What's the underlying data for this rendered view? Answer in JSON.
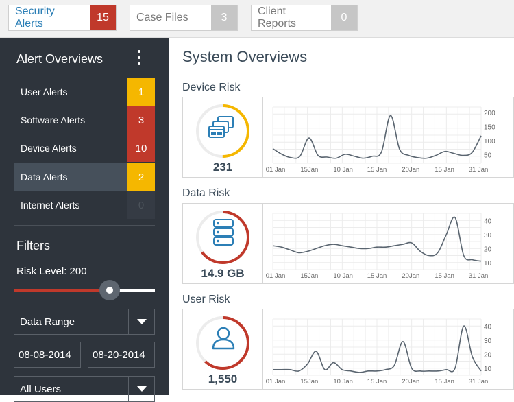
{
  "tabs": [
    {
      "label": "Security Alerts",
      "count": "15",
      "count_color": "#c0392b",
      "active": true
    },
    {
      "label": "Case Files",
      "count": "3",
      "count_color": "#c6c6c6",
      "active": false
    },
    {
      "label": "Client Reports",
      "count": "0",
      "count_color": "#c6c6c6",
      "active": false
    }
  ],
  "sidebar": {
    "title": "Alert Overviews",
    "menu_icon": "vertical-ellipsis-icon",
    "alerts": [
      {
        "label": "User Alerts",
        "count": "1",
        "color": "#f5b700"
      },
      {
        "label": "Software Alerts",
        "count": "3",
        "color": "#c0392b"
      },
      {
        "label": "Device Alerts",
        "count": "10",
        "color": "#c0392b"
      },
      {
        "label": "Data Alerts",
        "count": "2",
        "color": "#f5b700"
      },
      {
        "label": "Internet Alerts",
        "count": "0",
        "color": "#353b44"
      }
    ],
    "selected_alert": "Data Alerts",
    "filters": {
      "title": "Filters",
      "risk_label": "Risk Level: 200",
      "risk_level_fraction": 0.68,
      "data_range_label": "Data Range",
      "date_from": "08-08-2014",
      "date_to": "08-20-2014",
      "users_label": "All Users"
    }
  },
  "main": {
    "title": "System Overviews",
    "sections": [
      {
        "title": "Device Risk",
        "value": "231",
        "icon": "windows-icon",
        "ring_color": "#f5b700",
        "ring_fraction": 0.5,
        "chart_data": {
          "type": "line",
          "x_labels": [
            "01 Jan",
            "15Jan",
            "10 Jan",
            "15 Jan",
            "20Jan",
            "15 Jan",
            "31 Jan"
          ],
          "y_ticks": [
            "200",
            "150",
            "100",
            "50"
          ],
          "ylim": [
            20,
            220
          ],
          "values": [
            72,
            52,
            40,
            45,
            110,
            48,
            42,
            38,
            52,
            45,
            38,
            45,
            60,
            190,
            70,
            48,
            40,
            38,
            48,
            62,
            55,
            48,
            58,
            118
          ],
          "line_color": "#5a6570",
          "grid": true
        }
      },
      {
        "title": "Data Risk",
        "value": "14.9 GB",
        "icon": "database-icon",
        "ring_color": "#c0392b",
        "ring_fraction": 0.65,
        "chart_data": {
          "type": "line",
          "x_labels": [
            "01 Jan",
            "15Jan",
            "10 Jan",
            "15 Jan",
            "20Jan",
            "15 Jan",
            "31 Jan"
          ],
          "y_ticks": [
            "40",
            "30",
            "20",
            "10"
          ],
          "ylim": [
            5,
            45
          ],
          "values": [
            22,
            21,
            19,
            17,
            18,
            20,
            22,
            23,
            22,
            21,
            20,
            20,
            21,
            21,
            22,
            23,
            24,
            18,
            15,
            17,
            30,
            42,
            15,
            12,
            11
          ],
          "line_color": "#5a6570",
          "grid": true
        }
      },
      {
        "title": "User Risk",
        "value": "1,550",
        "icon": "user-icon",
        "ring_color": "#c0392b",
        "ring_fraction": 0.62,
        "chart_data": {
          "type": "line",
          "x_labels": [
            "01 Jan",
            "15Jan",
            "10 Jan",
            "15 Jan",
            "20Jan",
            "15 Jan",
            "31 Jan"
          ],
          "y_ticks": [
            "40",
            "30",
            "20",
            "10"
          ],
          "ylim": [
            5,
            45
          ],
          "values": [
            9,
            9,
            9,
            8,
            13,
            22,
            9,
            14,
            9,
            8,
            7,
            8,
            8,
            9,
            12,
            29,
            10,
            8,
            8,
            8,
            9,
            10,
            40,
            18,
            8
          ],
          "line_color": "#5a6570",
          "grid": true
        }
      }
    ]
  }
}
